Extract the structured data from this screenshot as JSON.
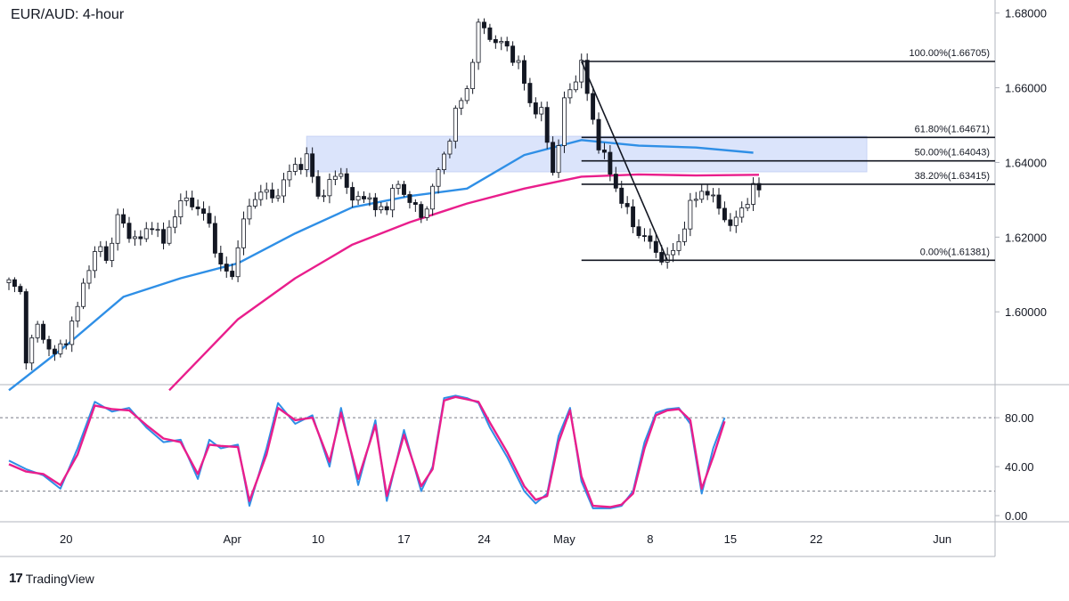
{
  "header": {
    "title": "EUR/AUD: 4-hour"
  },
  "brand": {
    "logo": "17",
    "name": "TradingView"
  },
  "chart_data": [
    {
      "type": "candlestick",
      "title": "EUR/AUD: 4-hour",
      "x_ticks": [
        "20",
        "Apr",
        "10",
        "17",
        "24",
        "May",
        "8",
        "15",
        "22",
        "Jun"
      ],
      "y_ticks": [
        "1.68000",
        "1.66000",
        "1.64000",
        "1.62000",
        "1.60000"
      ],
      "ylim": [
        1.5805,
        1.6835
      ],
      "close_path": [
        [
          0,
          1.6078
        ],
        [
          2,
          1.605
        ],
        [
          3,
          1.588
        ],
        [
          5,
          1.596
        ],
        [
          8,
          1.588
        ],
        [
          10,
          1.593
        ],
        [
          12,
          1.601
        ],
        [
          14,
          1.613
        ],
        [
          16,
          1.617
        ],
        [
          17,
          1.614
        ],
        [
          19,
          1.625
        ],
        [
          21,
          1.621
        ],
        [
          23,
          1.619
        ],
        [
          25,
          1.624
        ],
        [
          27,
          1.618
        ],
        [
          29,
          1.627
        ],
        [
          31,
          1.63
        ],
        [
          33,
          1.628
        ],
        [
          35,
          1.623
        ],
        [
          37,
          1.612
        ],
        [
          39,
          1.609
        ],
        [
          40,
          1.619
        ],
        [
          42,
          1.628
        ],
        [
          44,
          1.633
        ],
        [
          46,
          1.63
        ],
        [
          48,
          1.635
        ],
        [
          50,
          1.639
        ],
        [
          52,
          1.641
        ],
        [
          54,
          1.631
        ],
        [
          56,
          1.634
        ],
        [
          58,
          1.638
        ],
        [
          60,
          1.629
        ],
        [
          62,
          1.632
        ],
        [
          64,
          1.627
        ],
        [
          66,
          1.629
        ],
        [
          68,
          1.634
        ],
        [
          70,
          1.63
        ],
        [
          72,
          1.625
        ],
        [
          74,
          1.633
        ],
        [
          76,
          1.642
        ],
        [
          78,
          1.653
        ],
        [
          80,
          1.66
        ],
        [
          82,
          1.676
        ],
        [
          83,
          1.676
        ],
        [
          85,
          1.672
        ],
        [
          87,
          1.671
        ],
        [
          89,
          1.666
        ],
        [
          91,
          1.656
        ],
        [
          93,
          1.653
        ],
        [
          95,
          1.638
        ],
        [
          96,
          1.645
        ],
        [
          97,
          1.656
        ],
        [
          99,
          1.663
        ],
        [
          100,
          1.6665
        ],
        [
          101,
          1.658
        ],
        [
          103,
          1.645
        ],
        [
          105,
          1.637
        ],
        [
          107,
          1.63
        ],
        [
          109,
          1.623
        ],
        [
          111,
          1.62
        ],
        [
          113,
          1.616
        ],
        [
          115,
          1.6138
        ],
        [
          117,
          1.619
        ],
        [
          119,
          1.628
        ],
        [
          121,
          1.633
        ],
        [
          123,
          1.63
        ],
        [
          125,
          1.626
        ],
        [
          126,
          1.622
        ],
        [
          128,
          1.628
        ],
        [
          130,
          1.6325
        ],
        [
          131,
          1.633
        ]
      ],
      "moving_averages": [
        {
          "name": "",
          "color": "#2f8fe6",
          "points": [
            [
              0,
              1.579
            ],
            [
              10,
              1.591
            ],
            [
              20,
              1.604
            ],
            [
              30,
              1.609
            ],
            [
              40,
              1.613
            ],
            [
              50,
              1.621
            ],
            [
              60,
              1.628
            ],
            [
              70,
              1.631
            ],
            [
              80,
              1.633
            ],
            [
              90,
              1.642
            ],
            [
              100,
              1.646
            ],
            [
              110,
              1.6445
            ],
            [
              120,
              1.644
            ],
            [
              130,
              1.6426
            ]
          ]
        },
        {
          "name": "",
          "color": "#e91e8c",
          "points": [
            [
              28,
              1.579
            ],
            [
              40,
              1.598
            ],
            [
              50,
              1.609
            ],
            [
              60,
              1.618
            ],
            [
              70,
              1.624
            ],
            [
              80,
              1.629
            ],
            [
              90,
              1.633
            ],
            [
              100,
              1.6362
            ],
            [
              110,
              1.6368
            ],
            [
              120,
              1.6365
            ],
            [
              131,
              1.6367
            ]
          ]
        }
      ],
      "supply_zone": {
        "from": 1.6375,
        "to": 1.647,
        "color": "#dbe4fb"
      },
      "fibonacci": [
        {
          "label": "100.00%(1.66705)",
          "price": 1.66705
        },
        {
          "label": "61.80%(1.64671)",
          "price": 1.64671
        },
        {
          "label": "50.00%(1.64043)",
          "price": 1.64043
        },
        {
          "label": "38.20%(1.63415)",
          "price": 1.63415
        },
        {
          "label": "0.00%(1.61381)",
          "price": 1.61381
        }
      ]
    },
    {
      "type": "line",
      "title": "",
      "y_ticks": [
        "80.00",
        "40.00",
        "0.00"
      ],
      "ylim": [
        -5,
        107
      ],
      "levels": [
        80,
        20
      ],
      "series": [
        {
          "name": "",
          "color": "#2f8fe6",
          "values": [
            [
              0,
              45
            ],
            [
              3,
              38
            ],
            [
              6,
              33
            ],
            [
              9,
              22
            ],
            [
              12,
              55
            ],
            [
              15,
              93
            ],
            [
              18,
              85
            ],
            [
              21,
              88
            ],
            [
              24,
              72
            ],
            [
              27,
              60
            ],
            [
              30,
              62
            ],
            [
              33,
              30
            ],
            [
              35,
              62
            ],
            [
              37,
              55
            ],
            [
              40,
              58
            ],
            [
              42,
              8
            ],
            [
              45,
              55
            ],
            [
              47,
              92
            ],
            [
              50,
              75
            ],
            [
              53,
              82
            ],
            [
              56,
              40
            ],
            [
              58,
              88
            ],
            [
              61,
              25
            ],
            [
              64,
              78
            ],
            [
              66,
              12
            ],
            [
              69,
              70
            ],
            [
              72,
              20
            ],
            [
              74,
              40
            ],
            [
              76,
              96
            ],
            [
              78,
              98
            ],
            [
              80,
              96
            ],
            [
              82,
              92
            ],
            [
              84,
              72
            ],
            [
              87,
              48
            ],
            [
              90,
              20
            ],
            [
              92,
              10
            ],
            [
              94,
              18
            ],
            [
              96,
              65
            ],
            [
              98,
              88
            ],
            [
              100,
              28
            ],
            [
              102,
              6
            ],
            [
              105,
              6
            ],
            [
              107,
              8
            ],
            [
              109,
              20
            ],
            [
              111,
              60
            ],
            [
              113,
              84
            ],
            [
              115,
              87
            ],
            [
              117,
              88
            ],
            [
              119,
              75
            ],
            [
              121,
              18
            ],
            [
              123,
              55
            ],
            [
              125,
              80
            ]
          ]
        },
        {
          "name": "",
          "color": "#e91e8c",
          "values": [
            [
              0,
              42
            ],
            [
              3,
              36
            ],
            [
              6,
              34
            ],
            [
              9,
              25
            ],
            [
              12,
              50
            ],
            [
              15,
              90
            ],
            [
              18,
              87
            ],
            [
              21,
              86
            ],
            [
              24,
              74
            ],
            [
              27,
              63
            ],
            [
              30,
              60
            ],
            [
              33,
              34
            ],
            [
              35,
              58
            ],
            [
              37,
              57
            ],
            [
              40,
              56
            ],
            [
              42,
              12
            ],
            [
              45,
              50
            ],
            [
              47,
              88
            ],
            [
              50,
              78
            ],
            [
              53,
              80
            ],
            [
              56,
              44
            ],
            [
              58,
              84
            ],
            [
              61,
              30
            ],
            [
              64,
              74
            ],
            [
              66,
              16
            ],
            [
              69,
              66
            ],
            [
              72,
              24
            ],
            [
              74,
              38
            ],
            [
              76,
              94
            ],
            [
              78,
              97
            ],
            [
              80,
              95
            ],
            [
              82,
              93
            ],
            [
              84,
              76
            ],
            [
              87,
              52
            ],
            [
              90,
              24
            ],
            [
              92,
              13
            ],
            [
              94,
              16
            ],
            [
              96,
              60
            ],
            [
              98,
              86
            ],
            [
              100,
              32
            ],
            [
              102,
              8
            ],
            [
              105,
              7
            ],
            [
              107,
              9
            ],
            [
              109,
              18
            ],
            [
              111,
              55
            ],
            [
              113,
              82
            ],
            [
              115,
              86
            ],
            [
              117,
              87
            ],
            [
              119,
              78
            ],
            [
              121,
              22
            ],
            [
              123,
              48
            ],
            [
              125,
              77
            ]
          ]
        }
      ]
    }
  ]
}
